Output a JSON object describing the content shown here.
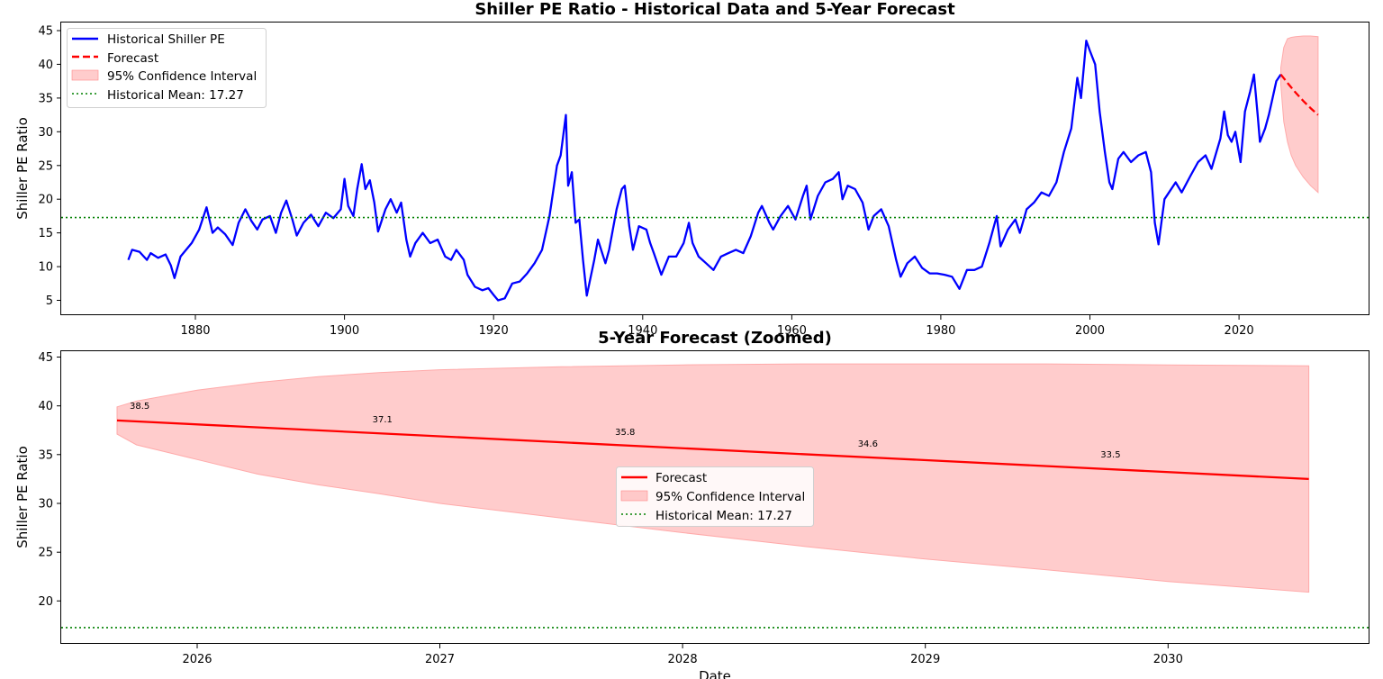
{
  "colors": {
    "historical": "#0000ff",
    "forecast": "#ff0000",
    "ci_fill": "#ffaaaa",
    "mean_line": "#008000",
    "axis": "#000000",
    "background": "#ffffff"
  },
  "chart_data": [
    {
      "type": "line",
      "title": "Shiller PE Ratio - Historical Data and 5-Year Forecast",
      "xlabel": "",
      "ylabel": "Shiller PE Ratio",
      "xlim": [
        1862,
        2037.5
      ],
      "ylim": [
        2.8,
        46.2
      ],
      "xticks": [
        1880,
        1900,
        1920,
        1940,
        1960,
        1980,
        2000,
        2020
      ],
      "xtick_labels": [
        "1880",
        "1900",
        "1920",
        "1940",
        "1960",
        "1980",
        "2000",
        "2020"
      ],
      "yticks": [
        5,
        10,
        15,
        20,
        25,
        30,
        35,
        40,
        45
      ],
      "ytick_labels": [
        "5",
        "10",
        "15",
        "20",
        "25",
        "30",
        "35",
        "40",
        "45"
      ],
      "legend": {
        "position": "top-left",
        "entries": [
          "Historical Shiller PE",
          "Forecast",
          "95% Confidence Interval",
          "Historical Mean: 17.27"
        ]
      },
      "series": [
        {
          "name": "Historical Shiller PE",
          "style": "solid",
          "points": [
            [
              1871.0,
              11.0
            ],
            [
              1871.5,
              12.5
            ],
            [
              1872.5,
              12.2
            ],
            [
              1873.5,
              11.0
            ],
            [
              1874.0,
              12.0
            ],
            [
              1875.0,
              11.3
            ],
            [
              1876.0,
              11.8
            ],
            [
              1876.7,
              10.2
            ],
            [
              1877.2,
              8.3
            ],
            [
              1878.0,
              11.5
            ],
            [
              1879.5,
              13.5
            ],
            [
              1880.5,
              15.5
            ],
            [
              1881.5,
              18.8
            ],
            [
              1882.3,
              15.0
            ],
            [
              1883.0,
              15.8
            ],
            [
              1884.0,
              14.8
            ],
            [
              1885.0,
              13.2
            ],
            [
              1885.8,
              16.5
            ],
            [
              1886.7,
              18.5
            ],
            [
              1887.5,
              16.8
            ],
            [
              1888.3,
              15.5
            ],
            [
              1889.0,
              17.0
            ],
            [
              1890.0,
              17.5
            ],
            [
              1890.8,
              15.0
            ],
            [
              1891.5,
              18.0
            ],
            [
              1892.2,
              19.8
            ],
            [
              1893.0,
              17.0
            ],
            [
              1893.6,
              14.6
            ],
            [
              1894.5,
              16.5
            ],
            [
              1895.5,
              17.7
            ],
            [
              1896.5,
              16.0
            ],
            [
              1897.5,
              18.0
            ],
            [
              1898.5,
              17.2
            ],
            [
              1899.5,
              18.5
            ],
            [
              1900.0,
              23.0
            ],
            [
              1900.5,
              19.0
            ],
            [
              1901.2,
              17.5
            ],
            [
              1901.7,
              21.5
            ],
            [
              1902.3,
              25.2
            ],
            [
              1902.8,
              21.5
            ],
            [
              1903.4,
              22.8
            ],
            [
              1904.0,
              19.5
            ],
            [
              1904.5,
              15.2
            ],
            [
              1905.5,
              18.5
            ],
            [
              1906.2,
              20.0
            ],
            [
              1907.0,
              18.0
            ],
            [
              1907.6,
              19.5
            ],
            [
              1908.3,
              14.0
            ],
            [
              1908.8,
              11.5
            ],
            [
              1909.5,
              13.5
            ],
            [
              1910.5,
              15.0
            ],
            [
              1911.5,
              13.5
            ],
            [
              1912.5,
              14.0
            ],
            [
              1913.5,
              11.5
            ],
            [
              1914.3,
              11.0
            ],
            [
              1915.0,
              12.5
            ],
            [
              1916.0,
              11.0
            ],
            [
              1916.5,
              8.8
            ],
            [
              1917.5,
              7.0
            ],
            [
              1918.5,
              6.5
            ],
            [
              1919.3,
              6.8
            ],
            [
              1920.0,
              5.8
            ],
            [
              1920.6,
              5.0
            ],
            [
              1921.5,
              5.3
            ],
            [
              1922.5,
              7.5
            ],
            [
              1923.5,
              7.8
            ],
            [
              1924.5,
              9.0
            ],
            [
              1925.5,
              10.5
            ],
            [
              1926.5,
              12.5
            ],
            [
              1927.5,
              17.5
            ],
            [
              1928.5,
              25.0
            ],
            [
              1929.0,
              26.5
            ],
            [
              1929.7,
              32.5
            ],
            [
              1930.0,
              22.0
            ],
            [
              1930.5,
              24.0
            ],
            [
              1931.0,
              16.5
            ],
            [
              1931.5,
              17.0
            ],
            [
              1932.0,
              11.0
            ],
            [
              1932.5,
              5.7
            ],
            [
              1933.5,
              11.0
            ],
            [
              1934.0,
              14.0
            ],
            [
              1935.0,
              10.5
            ],
            [
              1935.5,
              12.5
            ],
            [
              1936.5,
              18.5
            ],
            [
              1937.2,
              21.5
            ],
            [
              1937.6,
              22.0
            ],
            [
              1938.2,
              16.0
            ],
            [
              1938.7,
              12.5
            ],
            [
              1939.5,
              16.0
            ],
            [
              1940.5,
              15.5
            ],
            [
              1941.0,
              13.5
            ],
            [
              1941.5,
              12.0
            ],
            [
              1942.5,
              8.8
            ],
            [
              1943.5,
              11.5
            ],
            [
              1944.5,
              11.5
            ],
            [
              1945.5,
              13.5
            ],
            [
              1946.2,
              16.5
            ],
            [
              1946.7,
              13.5
            ],
            [
              1947.5,
              11.5
            ],
            [
              1948.5,
              10.5
            ],
            [
              1949.5,
              9.5
            ],
            [
              1950.5,
              11.5
            ],
            [
              1951.5,
              12.0
            ],
            [
              1952.5,
              12.5
            ],
            [
              1953.5,
              12.0
            ],
            [
              1954.5,
              14.5
            ],
            [
              1955.5,
              18.0
            ],
            [
              1956.0,
              19.0
            ],
            [
              1957.0,
              16.5
            ],
            [
              1957.5,
              15.5
            ],
            [
              1958.5,
              17.5
            ],
            [
              1959.5,
              19.0
            ],
            [
              1960.5,
              17.0
            ],
            [
              1961.5,
              20.5
            ],
            [
              1962.0,
              22.0
            ],
            [
              1962.5,
              17.0
            ],
            [
              1963.5,
              20.5
            ],
            [
              1964.5,
              22.5
            ],
            [
              1965.5,
              23.0
            ],
            [
              1966.3,
              24.0
            ],
            [
              1966.8,
              20.0
            ],
            [
              1967.5,
              22.0
            ],
            [
              1968.5,
              21.5
            ],
            [
              1969.5,
              19.5
            ],
            [
              1970.3,
              15.5
            ],
            [
              1971.0,
              17.5
            ],
            [
              1972.0,
              18.5
            ],
            [
              1973.0,
              16.0
            ],
            [
              1974.0,
              11.0
            ],
            [
              1974.6,
              8.5
            ],
            [
              1975.5,
              10.5
            ],
            [
              1976.5,
              11.5
            ],
            [
              1977.5,
              9.8
            ],
            [
              1978.5,
              9.0
            ],
            [
              1979.5,
              9.0
            ],
            [
              1980.5,
              8.8
            ],
            [
              1981.5,
              8.5
            ],
            [
              1982.5,
              6.7
            ],
            [
              1983.5,
              9.5
            ],
            [
              1984.5,
              9.5
            ],
            [
              1985.5,
              10.0
            ],
            [
              1986.5,
              13.5
            ],
            [
              1987.5,
              17.5
            ],
            [
              1988.0,
              13.0
            ],
            [
              1989.0,
              15.5
            ],
            [
              1990.0,
              17.0
            ],
            [
              1990.6,
              15.0
            ],
            [
              1991.5,
              18.5
            ],
            [
              1992.5,
              19.5
            ],
            [
              1993.5,
              21.0
            ],
            [
              1994.5,
              20.5
            ],
            [
              1995.5,
              22.5
            ],
            [
              1996.5,
              27.0
            ],
            [
              1997.5,
              30.5
            ],
            [
              1998.3,
              38.0
            ],
            [
              1998.8,
              35.0
            ],
            [
              1999.5,
              43.5
            ],
            [
              2000.0,
              42.0
            ],
            [
              2000.7,
              40.0
            ],
            [
              2001.3,
              33.0
            ],
            [
              2002.0,
              27.0
            ],
            [
              2002.6,
              22.5
            ],
            [
              2003.0,
              21.5
            ],
            [
              2003.8,
              26.0
            ],
            [
              2004.5,
              27.0
            ],
            [
              2005.5,
              25.5
            ],
            [
              2006.5,
              26.5
            ],
            [
              2007.5,
              27.0
            ],
            [
              2008.2,
              24.0
            ],
            [
              2008.7,
              16.5
            ],
            [
              2009.2,
              13.3
            ],
            [
              2010.0,
              20.0
            ],
            [
              2010.6,
              21.0
            ],
            [
              2011.5,
              22.5
            ],
            [
              2012.3,
              21.0
            ],
            [
              2013.5,
              23.5
            ],
            [
              2014.5,
              25.5
            ],
            [
              2015.5,
              26.5
            ],
            [
              2016.3,
              24.5
            ],
            [
              2017.5,
              29.0
            ],
            [
              2018.0,
              33.0
            ],
            [
              2018.5,
              29.5
            ],
            [
              2019.0,
              28.5
            ],
            [
              2019.5,
              30.0
            ],
            [
              2020.2,
              25.5
            ],
            [
              2020.8,
              33.0
            ],
            [
              2021.5,
              36.0
            ],
            [
              2022.0,
              38.5
            ],
            [
              2022.5,
              32.5
            ],
            [
              2022.8,
              28.5
            ],
            [
              2023.5,
              30.5
            ],
            [
              2024.0,
              32.5
            ],
            [
              2024.6,
              35.5
            ],
            [
              2025.0,
              37.5
            ],
            [
              2025.6,
              38.5
            ]
          ]
        },
        {
          "name": "Forecast",
          "style": "dashed",
          "points": [
            [
              2025.6,
              38.5
            ],
            [
              2026.6,
              37.1
            ],
            [
              2027.6,
              35.8
            ],
            [
              2028.6,
              34.6
            ],
            [
              2029.6,
              33.5
            ],
            [
              2030.6,
              32.5
            ]
          ]
        }
      ],
      "confidence_interval": {
        "x": [
          2025.6,
          2026.0,
          2026.5,
          2027.0,
          2027.6,
          2028.6,
          2029.6,
          2030.6
        ],
        "lower": [
          37.0,
          31.5,
          28.5,
          26.5,
          25.0,
          23.3,
          22.0,
          21.0
        ],
        "upper": [
          39.5,
          42.5,
          43.8,
          44.0,
          44.1,
          44.2,
          44.2,
          44.1
        ]
      },
      "mean_line": {
        "label": "Historical Mean: 17.27",
        "value": 17.27
      }
    },
    {
      "type": "line",
      "title": "5-Year Forecast (Zoomed)",
      "xlabel": "Date",
      "ylabel": "Shiller PE Ratio",
      "xlim": [
        2025.44,
        2030.83
      ],
      "ylim": [
        15.6,
        45.6
      ],
      "xticks": [
        2026,
        2027,
        2028,
        2029,
        2030
      ],
      "xtick_labels": [
        "2026",
        "2027",
        "2028",
        "2029",
        "2030"
      ],
      "yticks": [
        20,
        25,
        30,
        35,
        40,
        45
      ],
      "ytick_labels": [
        "20",
        "25",
        "30",
        "35",
        "40",
        "45"
      ],
      "legend": {
        "position": "center",
        "entries": [
          "Forecast",
          "95% Confidence Interval",
          "Historical Mean: 17.27"
        ]
      },
      "series": [
        {
          "name": "Forecast",
          "style": "solid",
          "points": [
            [
              2025.67,
              38.5
            ],
            [
              2030.58,
              32.5
            ]
          ]
        }
      ],
      "confidence_interval": {
        "x": [
          2025.67,
          2025.75,
          2026.0,
          2026.25,
          2026.5,
          2026.75,
          2027.0,
          2027.5,
          2028.0,
          2028.5,
          2029.0,
          2029.5,
          2030.0,
          2030.58
        ],
        "lower": [
          37.1,
          36.0,
          34.5,
          33.0,
          31.9,
          31.0,
          30.0,
          28.5,
          27.0,
          25.6,
          24.3,
          23.2,
          22.0,
          20.9
        ],
        "upper": [
          39.9,
          40.5,
          41.6,
          42.4,
          43.0,
          43.4,
          43.7,
          44.0,
          44.2,
          44.3,
          44.3,
          44.3,
          44.2,
          44.1
        ]
      },
      "annotations": [
        {
          "text": "38.5",
          "x": 2025.67,
          "y": 38.5
        },
        {
          "text": "37.1",
          "x": 2026.67,
          "y": 37.1
        },
        {
          "text": "35.8",
          "x": 2027.67,
          "y": 35.8
        },
        {
          "text": "34.6",
          "x": 2028.67,
          "y": 34.6
        },
        {
          "text": "33.5",
          "x": 2029.67,
          "y": 33.5
        }
      ],
      "mean_line": {
        "label": "Historical Mean: 17.27",
        "value": 17.27
      }
    }
  ]
}
